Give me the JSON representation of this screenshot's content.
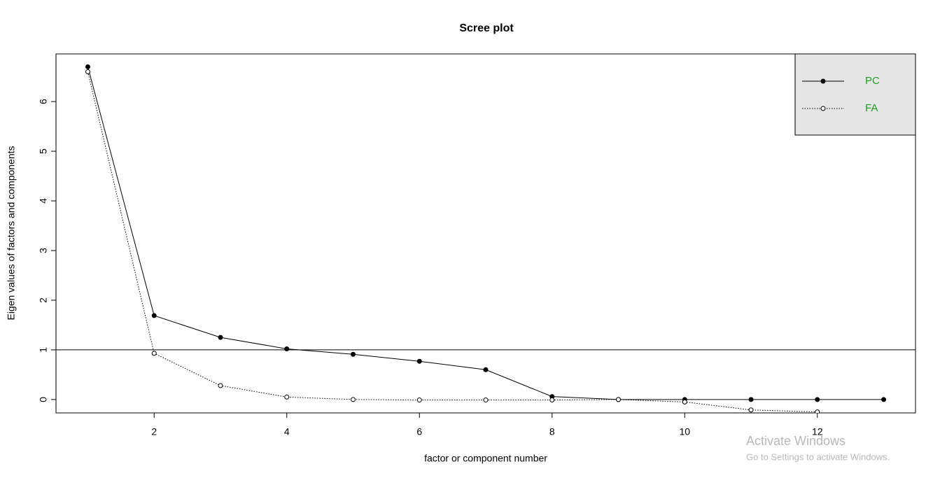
{
  "chart_data": {
    "type": "line",
    "title": "Scree plot",
    "xlabel": "factor or component number",
    "ylabel": "Eigen values of factors and components",
    "xlim": [
      0.52,
      13.48
    ],
    "xticks": [
      2,
      4,
      6,
      8,
      10,
      12
    ],
    "ylim": [
      -0.27,
      6.96
    ],
    "yticks": [
      0,
      1,
      2,
      3,
      4,
      5,
      6
    ],
    "hline": 1,
    "legend": "top-right",
    "legend_text_color": "#22a022",
    "series": [
      {
        "name": "PC",
        "color": "#000000",
        "style": "solid",
        "marker": "filled",
        "x": [
          1,
          2,
          3,
          4,
          5,
          6,
          7,
          8,
          9,
          10,
          11,
          12,
          13
        ],
        "values": [
          6.7,
          1.69,
          1.25,
          1.02,
          0.91,
          0.77,
          0.6,
          0.06,
          0.0,
          0.0,
          0.0,
          0.0,
          0.0
        ]
      },
      {
        "name": "FA",
        "color": "#000000",
        "style": "dotted",
        "marker": "open",
        "x": [
          1,
          2,
          3,
          4,
          5,
          6,
          7,
          8,
          9,
          10,
          11,
          12
        ],
        "values": [
          6.6,
          0.93,
          0.28,
          0.05,
          0.0,
          -0.01,
          -0.01,
          -0.01,
          0.0,
          -0.05,
          -0.21,
          -0.25
        ]
      }
    ],
    "annotations": [
      "Activate Windows",
      "Go to Settings to activate Windows."
    ]
  }
}
